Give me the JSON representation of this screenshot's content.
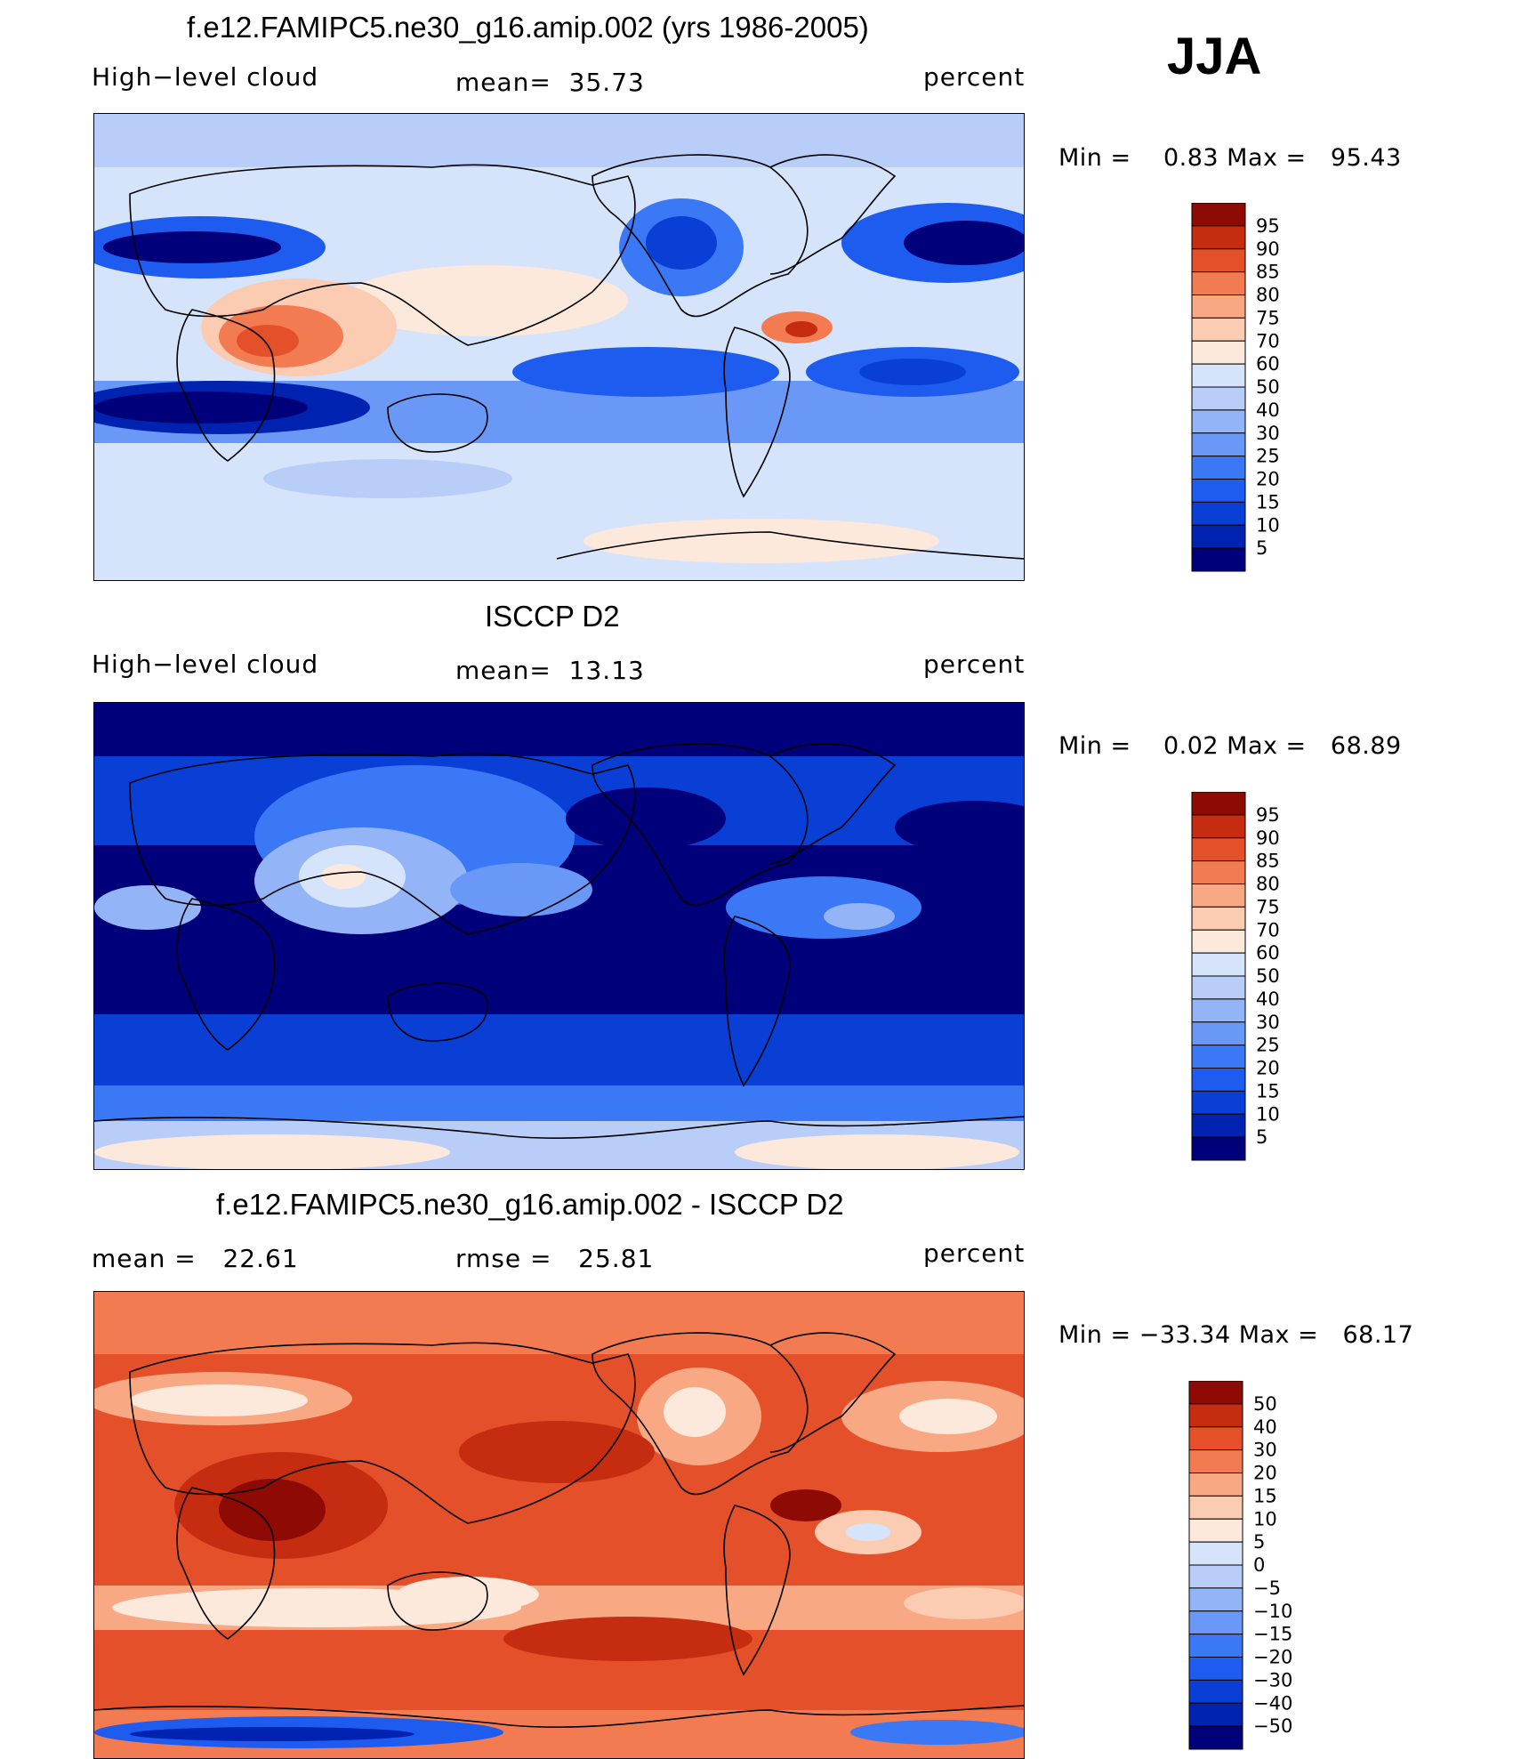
{
  "season": "JJA",
  "colors": {
    "positive_scale": [
      "#00007a",
      "#0022b0",
      "#0a3fd6",
      "#1e5cf0",
      "#3a78f5",
      "#6a98f7",
      "#94b4f8",
      "#b9cdf9",
      "#d6e4fb",
      "#fde8dc",
      "#fbcbb2",
      "#f8a883",
      "#f27b52",
      "#e4502a",
      "#c62c10",
      "#8e0a05"
    ],
    "diff_scale": [
      "#00007a",
      "#0022b0",
      "#0a3fd6",
      "#1e5cf0",
      "#3a78f5",
      "#6a98f7",
      "#94b4f8",
      "#b9cdf9",
      "#d6e4fb",
      "#fde8dc",
      "#fbcbb2",
      "#f8a883",
      "#f27b52",
      "#e4502a",
      "#c62c10",
      "#8e0a05"
    ]
  },
  "panels": [
    {
      "title": "f.e12.FAMIPC5.ne30_g16.amip.002 (yrs 1986-2005)",
      "left": "High−level cloud",
      "center": "mean=  35.73",
      "units": "percent",
      "minmax": "Min =    0.83 Max =   95.43",
      "colorbar": {
        "labels": [
          "95",
          "90",
          "85",
          "80",
          "75",
          "70",
          "60",
          "50",
          "40",
          "30",
          "25",
          "20",
          "15",
          "10",
          "5"
        ]
      },
      "chart_data": {
        "type": "heatmap",
        "variable": "High-level cloud",
        "units": "percent",
        "mean": 35.73,
        "min": 0.83,
        "max": 95.43,
        "levels": [
          5,
          10,
          15,
          20,
          25,
          30,
          40,
          50,
          60,
          70,
          75,
          80,
          85,
          90,
          95
        ]
      }
    },
    {
      "title": "ISCCP D2",
      "left": "High−level cloud",
      "center": "mean=  13.13",
      "units": "percent",
      "minmax": "Min =    0.02 Max =   68.89",
      "colorbar": {
        "labels": [
          "95",
          "90",
          "85",
          "80",
          "75",
          "70",
          "60",
          "50",
          "40",
          "30",
          "25",
          "20",
          "15",
          "10",
          "5"
        ]
      },
      "chart_data": {
        "type": "heatmap",
        "variable": "High-level cloud",
        "units": "percent",
        "mean": 13.13,
        "min": 0.02,
        "max": 68.89,
        "levels": [
          5,
          10,
          15,
          20,
          25,
          30,
          40,
          50,
          60,
          70,
          75,
          80,
          85,
          90,
          95
        ]
      }
    },
    {
      "title": "f.e12.FAMIPC5.ne30_g16.amip.002 - ISCCP D2",
      "left": "mean =   22.61",
      "center": "rmse =   25.81",
      "units": "percent",
      "minmax": "Min = −33.34 Max =   68.17",
      "colorbar": {
        "labels": [
          "50",
          "40",
          "30",
          "20",
          "15",
          "10",
          "5",
          "0",
          "−5",
          "−10",
          "−15",
          "−20",
          "−30",
          "−40",
          "−50"
        ]
      },
      "chart_data": {
        "type": "heatmap",
        "mean": 22.61,
        "rmse": 25.81,
        "units": "percent",
        "min": -33.34,
        "max": 68.17,
        "levels": [
          -50,
          -40,
          -30,
          -20,
          -15,
          -10,
          -5,
          0,
          5,
          10,
          15,
          20,
          30,
          40,
          50
        ]
      }
    }
  ]
}
